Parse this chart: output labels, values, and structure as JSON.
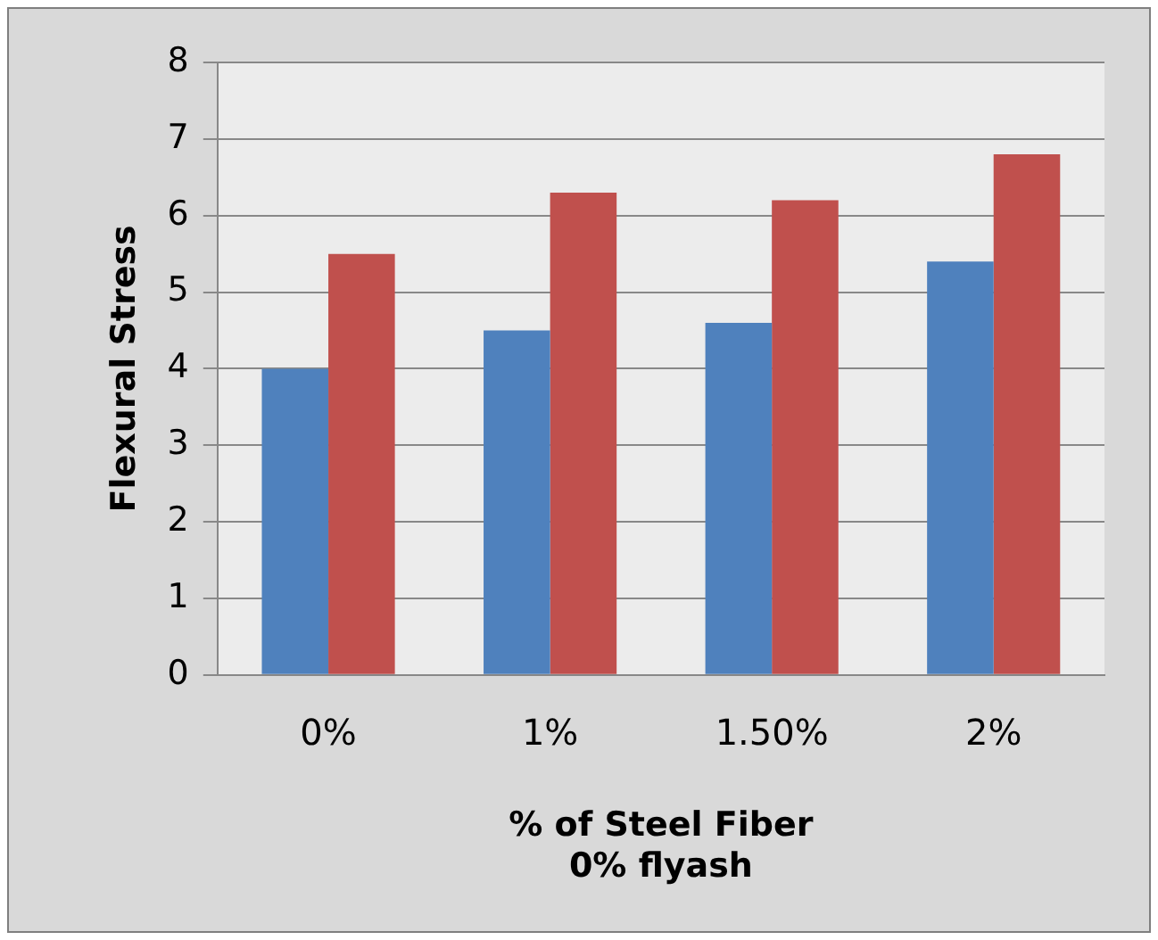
{
  "chart_data": {
    "type": "bar",
    "xlabel": "% of Steel Fiber\n0% flyash",
    "ylabel": "Flexural Stress",
    "categories": [
      "0%",
      "1%",
      "1.50%",
      "2%"
    ],
    "series": [
      {
        "color": "#4f81bd",
        "values": [
          4.0,
          4.5,
          4.6,
          5.4
        ]
      },
      {
        "color": "#c0504d",
        "values": [
          5.5,
          6.3,
          6.2,
          6.8
        ]
      }
    ],
    "ylim": [
      0,
      8
    ],
    "yticks": [
      0,
      1,
      2,
      3,
      4,
      5,
      6,
      7,
      8
    ],
    "grid": "y",
    "legend": false
  }
}
